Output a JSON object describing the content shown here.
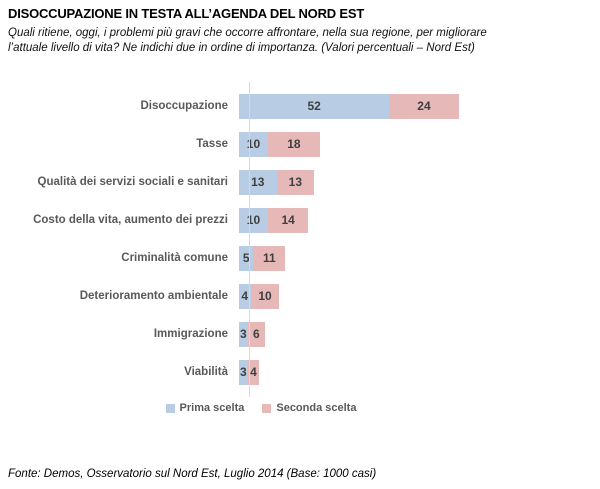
{
  "header": {
    "title": "DISOCCUPAZIONE IN TESTA ALL’AGENDA DEL NORD EST",
    "subtitle": "Quali ritiene, oggi, i problemi più gravi che occorre affrontare, nella sua regione, per migliorare l’attuale livello di vita? Ne indichi due in ordine di importanza. (Valori percentuali – Nord Est)"
  },
  "chart_data": {
    "type": "bar",
    "orientation": "horizontal",
    "stacked": true,
    "grid": false,
    "legend_position": "bottom",
    "value_labels": "inside-center",
    "xlim": [
      0,
      110
    ],
    "categories": [
      "Disoccupazione",
      "Tasse",
      "Qualità dei servizi sociali e sanitari",
      "Costo della vita, aumento dei prezzi",
      "Criminalità comune",
      "Deterioramento ambientale",
      "Immigrazione",
      "Viabilità"
    ],
    "series": [
      {
        "name": "Prima scelta",
        "color": "#b8cce4",
        "values": [
          52,
          10,
          13,
          10,
          5,
          4,
          3,
          3
        ]
      },
      {
        "name": "Seconda scelta",
        "color": "#e6b9b8",
        "values": [
          24,
          18,
          13,
          14,
          11,
          10,
          6,
          4
        ]
      }
    ]
  },
  "colors": {
    "prima_scelta": "#b8cce4",
    "seconda_scelta": "#e6b9b8",
    "axis_line": "#d9d9d9",
    "label_text": "#595959",
    "value_text": "#3f3f3f"
  },
  "footer": {
    "source": "Fonte: Demos, Osservatorio sul Nord Est, Luglio 2014 (Base: 1000 casi)"
  }
}
